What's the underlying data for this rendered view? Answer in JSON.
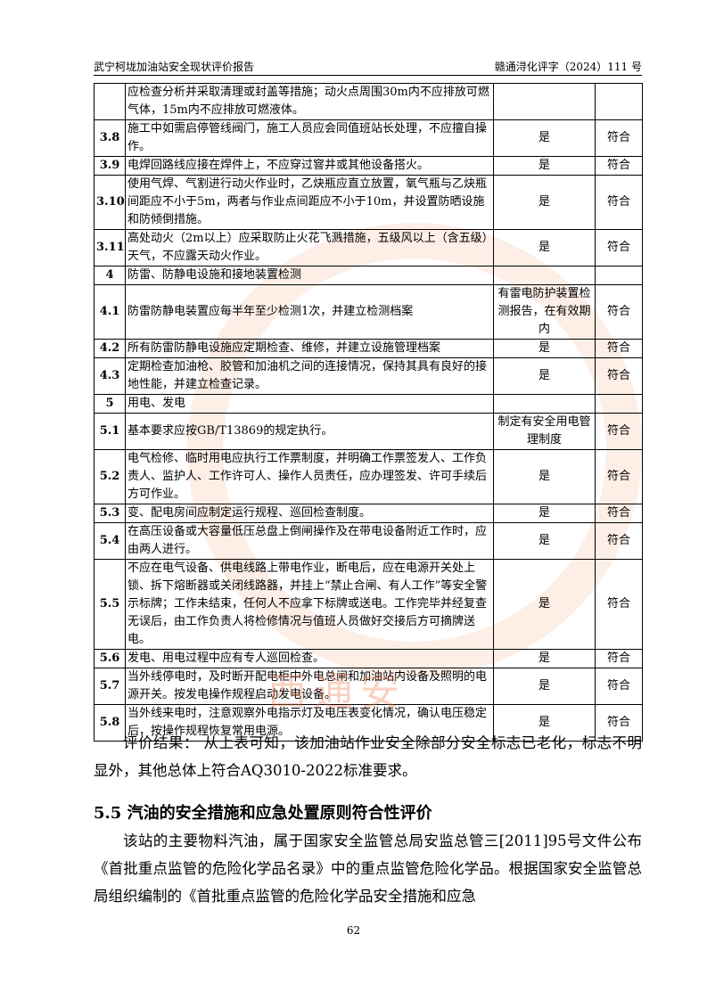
{
  "header": {
    "left": "武宁柯垅加油站安全现状评价报告",
    "right": "赣通浔化评字（2024）111 号"
  },
  "table": {
    "rows": [
      {
        "content": "应检查分析并采取清理或封盖等措施；动火点周围30m内不应排放可燃气体，15m内不应排放可燃液体。"
      },
      {
        "no": "3.8",
        "content": "施工中如需启停管线阀门，施工人员应会同值班站长处理，不应擅自操作。",
        "result": "是",
        "conclusion": "符合"
      },
      {
        "no": "3.9",
        "content": "电焊回路线应接在焊件上，不应穿过窨井或其他设备搭火。",
        "result": "是",
        "conclusion": "符合"
      },
      {
        "no": "3.10",
        "content": "使用气焊、气割进行动火作业时，乙炔瓶应直立放置，氧气瓶与乙炔瓶间距应不小于5m，两者与作业点间距应不小于10m，并设置防晒设施和防倾倒措施。",
        "result": "是",
        "conclusion": "符合"
      },
      {
        "no": "3.11",
        "content": "高处动火（2m以上）应采取防止火花飞溅措施，五级风以上（含五级）天气，不应露天动火作业。",
        "result": "是",
        "conclusion": "符合"
      },
      {
        "no": "4",
        "content": "防雷、防静电设施和接地装置检测"
      },
      {
        "no": "4.1",
        "content": "防雷防静电装置应每半年至少检测1次，并建立检测档案",
        "result": "有雷电防护装置检测报告，在有效期内",
        "conclusion": "符合"
      },
      {
        "no": "4.2",
        "content": "所有防雷防静电设施应定期检查、维修，并建立设施管理档案",
        "result": "是",
        "conclusion": "符合"
      },
      {
        "no": "4.3",
        "content": "定期检查加油枪、胶管和加油机之间的连接情况，保持其具有良好的接地性能，并建立检查记录。",
        "result": "是",
        "conclusion": "符合"
      },
      {
        "no": "5",
        "content": "用电、发电"
      },
      {
        "no": "5.1",
        "content": "基本要求应按GB/T13869的规定执行。",
        "result": "制定有安全用电管理制度",
        "conclusion": "符合"
      },
      {
        "no": "5.2",
        "content": "电气检修、临时用电应执行工作票制度，并明确工作票签发人、工作负责人、监护人、工作许可人、操作人员责任，应办理签发、许可手续后方可作业。",
        "result": "是",
        "conclusion": "符合"
      },
      {
        "no": "5.3",
        "content": "变、配电房间应制定运行规程、巡回检查制度。",
        "result": "是",
        "conclusion": "符合"
      },
      {
        "no": "5.4",
        "content": "在高压设备或大容量低压总盘上倒闸操作及在带电设备附近工作时，应由两人进行。",
        "result": "是",
        "conclusion": "符合"
      },
      {
        "no": "5.5",
        "content": "不应在电气设备、供电线路上带电作业，断电后，应在电源开关处上锁、拆下熔断器或关闭线路器，并挂上“禁止合闸、有人工作”等安全警示标牌；工作未结束，任何人不应拿下标牌或送电。工作完毕并经复查无误后，由工作负责人将检修情况与值班人员做好交接后方可摘牌送电。",
        "result": "是",
        "conclusion": "符合"
      },
      {
        "no": "5.6",
        "content": "发电、用电过程中应有专人巡回检查。",
        "result": "是",
        "conclusion": "符合"
      },
      {
        "no": "5.7",
        "content": "当外线停电时，及时断开配电柜中外电总闸和加油站内设备及照明的电源开关。按发电操作规程启动发电设备。",
        "result": "是",
        "conclusion": "符合"
      },
      {
        "no": "5.8",
        "content": "当外线来电时，注意观察外电指示灯及电压表变化情况，确认电压稳定后，按操作规程恢复常用电源。",
        "result": "是",
        "conclusion": "符合"
      }
    ]
  },
  "paragraph1": "评价结果：  从上表可知，该加油站作业安全除部分安全标志已老化，标志不明显外，其他总体上符合AQ3010-2022标准要求。",
  "heading": "5.5 汽油的安全措施和应急处置原则符合性评价",
  "paragraph2": "该站的主要物料汽油，属于国家安全监管总局安监总管三[2011]95号文件公布《首批重点监管的危险化学品名录》中的重点监管危险化学品。根据国家安全监管总局组织编制的《首批重点监管的危险化学品安全措施和应急",
  "watermark": "西通安",
  "page_number": "62"
}
